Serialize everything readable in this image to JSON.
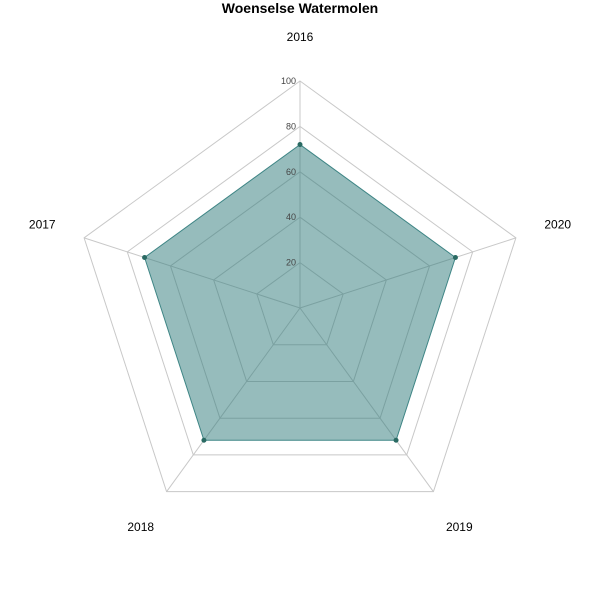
{
  "chart_data": {
    "type": "radar",
    "title": "Woenselse Watermolen",
    "axes": [
      "2016",
      "2020",
      "2019",
      "2018",
      "2017"
    ],
    "series": [
      {
        "values": [
          72,
          72,
          72,
          72,
          72
        ]
      }
    ],
    "rmax": 100,
    "ticks": [
      "20",
      "40",
      "60",
      "80",
      "100"
    ],
    "grid": true,
    "legend": "none",
    "colors": {
      "fill": "#2e7a7a",
      "stroke": "#3e8585",
      "point": "#2a6a63",
      "grid": "#c8c8c8"
    }
  }
}
